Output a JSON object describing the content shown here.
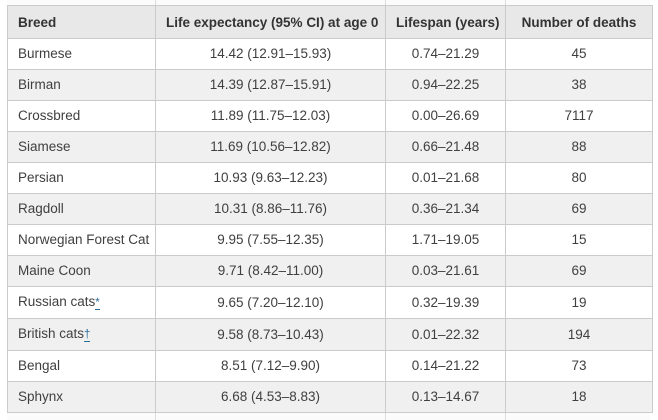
{
  "colors": {
    "header_bg": "#e8e8e8",
    "alt_row_bg": "#f0f0f0",
    "row_bg": "#ffffff",
    "border": "#cbcbcb",
    "text": "#3f3f3f",
    "header_text": "#333333",
    "footnote_link": "#2e6e9e"
  },
  "table": {
    "columns": [
      {
        "key": "breed",
        "label": "Breed",
        "align": "left"
      },
      {
        "key": "life_expectancy",
        "label": "Life expectancy (95% CI) at age 0",
        "align": "center"
      },
      {
        "key": "lifespan",
        "label": "Lifespan (years)",
        "align": "center"
      },
      {
        "key": "deaths",
        "label": "Number of deaths",
        "align": "center"
      }
    ],
    "rows": [
      {
        "breed": "Burmese",
        "marker": "",
        "life_expectancy": "14.42 (12.91–15.93)",
        "lifespan": "0.74–21.29",
        "deaths": "45"
      },
      {
        "breed": "Birman",
        "marker": "",
        "life_expectancy": "14.39 (12.87–15.91)",
        "lifespan": "0.94–22.25",
        "deaths": "38"
      },
      {
        "breed": "Crossbred",
        "marker": "",
        "life_expectancy": "11.89 (11.75–12.03)",
        "lifespan": "0.00–26.69",
        "deaths": "7117"
      },
      {
        "breed": "Siamese",
        "marker": "",
        "life_expectancy": "11.69 (10.56–12.82)",
        "lifespan": "0.66–21.48",
        "deaths": "88"
      },
      {
        "breed": "Persian",
        "marker": "",
        "life_expectancy": "10.93 (9.63–12.23)",
        "lifespan": "0.01–21.68",
        "deaths": "80"
      },
      {
        "breed": "Ragdoll",
        "marker": "",
        "life_expectancy": "10.31 (8.86–11.76)",
        "lifespan": "0.36–21.34",
        "deaths": "69"
      },
      {
        "breed": "Norwegian Forest Cat",
        "marker": "",
        "life_expectancy": "9.95 (7.55–12.35)",
        "lifespan": "1.71–19.05",
        "deaths": "15"
      },
      {
        "breed": "Maine Coon",
        "marker": "",
        "life_expectancy": "9.71 (8.42–11.00)",
        "lifespan": "0.03–21.61",
        "deaths": "69"
      },
      {
        "breed": "Russian cats",
        "marker": "*",
        "life_expectancy": "9.65 (7.20–12.10)",
        "lifespan": "0.32–19.39",
        "deaths": "19"
      },
      {
        "breed": "British cats",
        "marker": "†",
        "life_expectancy": "9.58 (8.73–10.43)",
        "lifespan": "0.01–22.32",
        "deaths": "194"
      },
      {
        "breed": "Bengal",
        "marker": "",
        "life_expectancy": "8.51 (7.12–9.90)",
        "lifespan": "0.14–21.22",
        "deaths": "73"
      },
      {
        "breed": "Sphynx",
        "marker": "",
        "life_expectancy": "6.68 (4.53–8.83)",
        "lifespan": "0.13–14.67",
        "deaths": "18"
      }
    ]
  },
  "chart_data": {
    "type": "table",
    "columns": [
      "Breed",
      "Life expectancy (95% CI) at age 0",
      "Lifespan (years)",
      "Number of deaths"
    ],
    "rows": [
      {
        "breed": "Burmese",
        "life_expectancy": 14.42,
        "ci_low": 12.91,
        "ci_high": 15.93,
        "lifespan_min": 0.74,
        "lifespan_max": 21.29,
        "deaths": 45
      },
      {
        "breed": "Birman",
        "life_expectancy": 14.39,
        "ci_low": 12.87,
        "ci_high": 15.91,
        "lifespan_min": 0.94,
        "lifespan_max": 22.25,
        "deaths": 38
      },
      {
        "breed": "Crossbred",
        "life_expectancy": 11.89,
        "ci_low": 11.75,
        "ci_high": 12.03,
        "lifespan_min": 0.0,
        "lifespan_max": 26.69,
        "deaths": 7117
      },
      {
        "breed": "Siamese",
        "life_expectancy": 11.69,
        "ci_low": 10.56,
        "ci_high": 12.82,
        "lifespan_min": 0.66,
        "lifespan_max": 21.48,
        "deaths": 88
      },
      {
        "breed": "Persian",
        "life_expectancy": 10.93,
        "ci_low": 9.63,
        "ci_high": 12.23,
        "lifespan_min": 0.01,
        "lifespan_max": 21.68,
        "deaths": 80
      },
      {
        "breed": "Ragdoll",
        "life_expectancy": 10.31,
        "ci_low": 8.86,
        "ci_high": 11.76,
        "lifespan_min": 0.36,
        "lifespan_max": 21.34,
        "deaths": 69
      },
      {
        "breed": "Norwegian Forest Cat",
        "life_expectancy": 9.95,
        "ci_low": 7.55,
        "ci_high": 12.35,
        "lifespan_min": 1.71,
        "lifespan_max": 19.05,
        "deaths": 15
      },
      {
        "breed": "Maine Coon",
        "life_expectancy": 9.71,
        "ci_low": 8.42,
        "ci_high": 11.0,
        "lifespan_min": 0.03,
        "lifespan_max": 21.61,
        "deaths": 69
      },
      {
        "breed": "Russian cats*",
        "life_expectancy": 9.65,
        "ci_low": 7.2,
        "ci_high": 12.1,
        "lifespan_min": 0.32,
        "lifespan_max": 19.39,
        "deaths": 19
      },
      {
        "breed": "British cats†",
        "life_expectancy": 9.58,
        "ci_low": 8.73,
        "ci_high": 10.43,
        "lifespan_min": 0.01,
        "lifespan_max": 22.32,
        "deaths": 194
      },
      {
        "breed": "Bengal",
        "life_expectancy": 8.51,
        "ci_low": 7.12,
        "ci_high": 9.9,
        "lifespan_min": 0.14,
        "lifespan_max": 21.22,
        "deaths": 73
      },
      {
        "breed": "Sphynx",
        "life_expectancy": 6.68,
        "ci_low": 4.53,
        "ci_high": 8.83,
        "lifespan_min": 0.13,
        "lifespan_max": 14.67,
        "deaths": 18
      }
    ],
    "title": "",
    "notes": "Footnote markers visible: * on Russian cats, † on British cats"
  }
}
